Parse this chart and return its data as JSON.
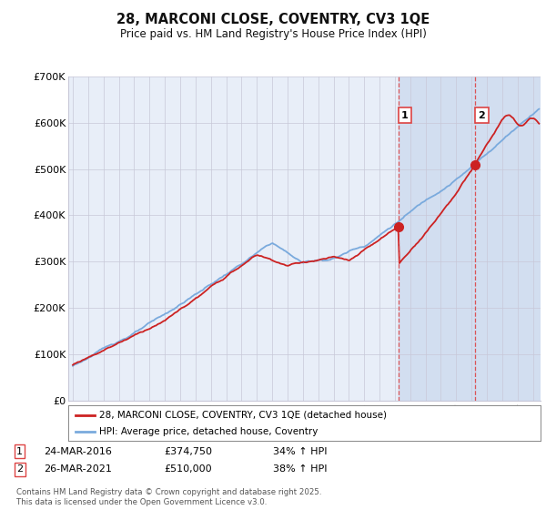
{
  "title": "28, MARCONI CLOSE, COVENTRY, CV3 1QE",
  "subtitle": "Price paid vs. HM Land Registry's House Price Index (HPI)",
  "legend_line1": "28, MARCONI CLOSE, COVENTRY, CV3 1QE (detached house)",
  "legend_line2": "HPI: Average price, detached house, Coventry",
  "sale1_date": "24-MAR-2016",
  "sale1_price": "£374,750",
  "sale1_hpi": "34% ↑ HPI",
  "sale1_year": 2016.23,
  "sale1_value": 374750,
  "sale2_date": "26-MAR-2021",
  "sale2_price": "£510,000",
  "sale2_hpi": "38% ↑ HPI",
  "sale2_year": 2021.23,
  "sale2_value": 510000,
  "footer": "Contains HM Land Registry data © Crown copyright and database right 2025.\nThis data is licensed under the Open Government Licence v3.0.",
  "ylim": [
    0,
    700000
  ],
  "xlim_start": 1994.7,
  "xlim_end": 2025.5,
  "hpi_color": "#7aaadd",
  "price_color": "#cc2222",
  "vline_color": "#dd4444",
  "bg_color": "#e8eef8",
  "shade_color": "#d0ddf0",
  "grid_color": "#c8c8d8",
  "title_color": "#111111",
  "yticks": [
    0,
    100000,
    200000,
    300000,
    400000,
    500000,
    600000,
    700000
  ],
  "ytick_labels": [
    "£0",
    "£100K",
    "£200K",
    "£300K",
    "£400K",
    "£500K",
    "£600K",
    "£700K"
  ]
}
